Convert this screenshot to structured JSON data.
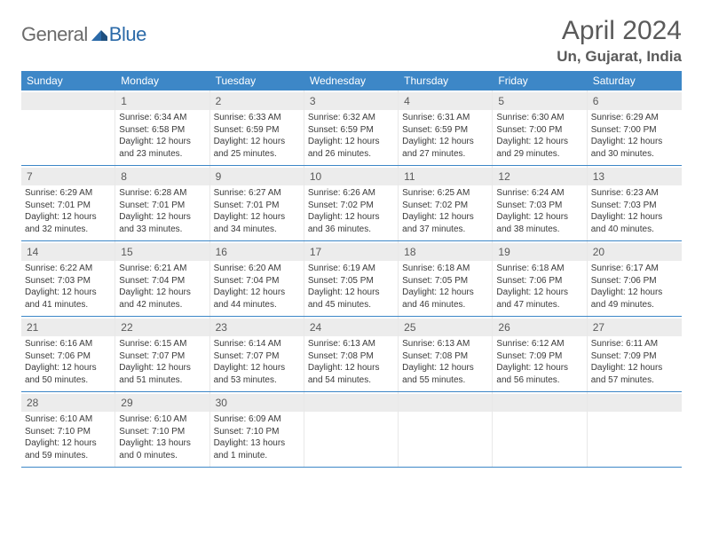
{
  "brand": {
    "general": "General",
    "blue": "Blue"
  },
  "title": "April 2024",
  "location": "Un, Gujarat, India",
  "colors": {
    "header_bg": "#3d87c7",
    "header_text": "#ffffff",
    "daynum_bg": "#ececec",
    "border": "#3d87c7",
    "text": "#3a3a3a",
    "title_text": "#5a5a5a"
  },
  "day_names": [
    "Sunday",
    "Monday",
    "Tuesday",
    "Wednesday",
    "Thursday",
    "Friday",
    "Saturday"
  ],
  "weeks": [
    [
      {
        "num": "",
        "lines": []
      },
      {
        "num": "1",
        "lines": [
          "Sunrise: 6:34 AM",
          "Sunset: 6:58 PM",
          "Daylight: 12 hours",
          "and 23 minutes."
        ]
      },
      {
        "num": "2",
        "lines": [
          "Sunrise: 6:33 AM",
          "Sunset: 6:59 PM",
          "Daylight: 12 hours",
          "and 25 minutes."
        ]
      },
      {
        "num": "3",
        "lines": [
          "Sunrise: 6:32 AM",
          "Sunset: 6:59 PM",
          "Daylight: 12 hours",
          "and 26 minutes."
        ]
      },
      {
        "num": "4",
        "lines": [
          "Sunrise: 6:31 AM",
          "Sunset: 6:59 PM",
          "Daylight: 12 hours",
          "and 27 minutes."
        ]
      },
      {
        "num": "5",
        "lines": [
          "Sunrise: 6:30 AM",
          "Sunset: 7:00 PM",
          "Daylight: 12 hours",
          "and 29 minutes."
        ]
      },
      {
        "num": "6",
        "lines": [
          "Sunrise: 6:29 AM",
          "Sunset: 7:00 PM",
          "Daylight: 12 hours",
          "and 30 minutes."
        ]
      }
    ],
    [
      {
        "num": "7",
        "lines": [
          "Sunrise: 6:29 AM",
          "Sunset: 7:01 PM",
          "Daylight: 12 hours",
          "and 32 minutes."
        ]
      },
      {
        "num": "8",
        "lines": [
          "Sunrise: 6:28 AM",
          "Sunset: 7:01 PM",
          "Daylight: 12 hours",
          "and 33 minutes."
        ]
      },
      {
        "num": "9",
        "lines": [
          "Sunrise: 6:27 AM",
          "Sunset: 7:01 PM",
          "Daylight: 12 hours",
          "and 34 minutes."
        ]
      },
      {
        "num": "10",
        "lines": [
          "Sunrise: 6:26 AM",
          "Sunset: 7:02 PM",
          "Daylight: 12 hours",
          "and 36 minutes."
        ]
      },
      {
        "num": "11",
        "lines": [
          "Sunrise: 6:25 AM",
          "Sunset: 7:02 PM",
          "Daylight: 12 hours",
          "and 37 minutes."
        ]
      },
      {
        "num": "12",
        "lines": [
          "Sunrise: 6:24 AM",
          "Sunset: 7:03 PM",
          "Daylight: 12 hours",
          "and 38 minutes."
        ]
      },
      {
        "num": "13",
        "lines": [
          "Sunrise: 6:23 AM",
          "Sunset: 7:03 PM",
          "Daylight: 12 hours",
          "and 40 minutes."
        ]
      }
    ],
    [
      {
        "num": "14",
        "lines": [
          "Sunrise: 6:22 AM",
          "Sunset: 7:03 PM",
          "Daylight: 12 hours",
          "and 41 minutes."
        ]
      },
      {
        "num": "15",
        "lines": [
          "Sunrise: 6:21 AM",
          "Sunset: 7:04 PM",
          "Daylight: 12 hours",
          "and 42 minutes."
        ]
      },
      {
        "num": "16",
        "lines": [
          "Sunrise: 6:20 AM",
          "Sunset: 7:04 PM",
          "Daylight: 12 hours",
          "and 44 minutes."
        ]
      },
      {
        "num": "17",
        "lines": [
          "Sunrise: 6:19 AM",
          "Sunset: 7:05 PM",
          "Daylight: 12 hours",
          "and 45 minutes."
        ]
      },
      {
        "num": "18",
        "lines": [
          "Sunrise: 6:18 AM",
          "Sunset: 7:05 PM",
          "Daylight: 12 hours",
          "and 46 minutes."
        ]
      },
      {
        "num": "19",
        "lines": [
          "Sunrise: 6:18 AM",
          "Sunset: 7:06 PM",
          "Daylight: 12 hours",
          "and 47 minutes."
        ]
      },
      {
        "num": "20",
        "lines": [
          "Sunrise: 6:17 AM",
          "Sunset: 7:06 PM",
          "Daylight: 12 hours",
          "and 49 minutes."
        ]
      }
    ],
    [
      {
        "num": "21",
        "lines": [
          "Sunrise: 6:16 AM",
          "Sunset: 7:06 PM",
          "Daylight: 12 hours",
          "and 50 minutes."
        ]
      },
      {
        "num": "22",
        "lines": [
          "Sunrise: 6:15 AM",
          "Sunset: 7:07 PM",
          "Daylight: 12 hours",
          "and 51 minutes."
        ]
      },
      {
        "num": "23",
        "lines": [
          "Sunrise: 6:14 AM",
          "Sunset: 7:07 PM",
          "Daylight: 12 hours",
          "and 53 minutes."
        ]
      },
      {
        "num": "24",
        "lines": [
          "Sunrise: 6:13 AM",
          "Sunset: 7:08 PM",
          "Daylight: 12 hours",
          "and 54 minutes."
        ]
      },
      {
        "num": "25",
        "lines": [
          "Sunrise: 6:13 AM",
          "Sunset: 7:08 PM",
          "Daylight: 12 hours",
          "and 55 minutes."
        ]
      },
      {
        "num": "26",
        "lines": [
          "Sunrise: 6:12 AM",
          "Sunset: 7:09 PM",
          "Daylight: 12 hours",
          "and 56 minutes."
        ]
      },
      {
        "num": "27",
        "lines": [
          "Sunrise: 6:11 AM",
          "Sunset: 7:09 PM",
          "Daylight: 12 hours",
          "and 57 minutes."
        ]
      }
    ],
    [
      {
        "num": "28",
        "lines": [
          "Sunrise: 6:10 AM",
          "Sunset: 7:10 PM",
          "Daylight: 12 hours",
          "and 59 minutes."
        ]
      },
      {
        "num": "29",
        "lines": [
          "Sunrise: 6:10 AM",
          "Sunset: 7:10 PM",
          "Daylight: 13 hours",
          "and 0 minutes."
        ]
      },
      {
        "num": "30",
        "lines": [
          "Sunrise: 6:09 AM",
          "Sunset: 7:10 PM",
          "Daylight: 13 hours",
          "and 1 minute."
        ]
      },
      {
        "num": "",
        "lines": []
      },
      {
        "num": "",
        "lines": []
      },
      {
        "num": "",
        "lines": []
      },
      {
        "num": "",
        "lines": []
      }
    ]
  ]
}
